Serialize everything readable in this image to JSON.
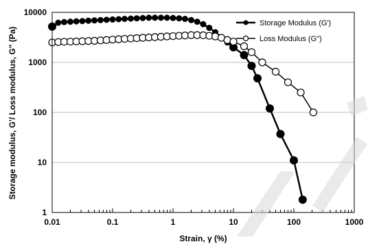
{
  "chart_data": {
    "type": "line",
    "xscale": "log",
    "yscale": "log",
    "xlim": [
      0.01,
      1000
    ],
    "ylim": [
      1,
      10000
    ],
    "xticks": [
      "0.01",
      "0.1",
      "1",
      "10",
      "100",
      "1000"
    ],
    "yticks": [
      "1",
      "10",
      "100",
      "1000",
      "10000"
    ],
    "xlabel": "Strain, γ (%)",
    "ylabel": "Storage modulus, G'/ Loss modulus, G\" (Pa)",
    "grid": "horizontal",
    "legend_position": "top-right",
    "series": [
      {
        "name": "Storage Modulus (G')",
        "color": "#000000",
        "marker": "filled-circle",
        "x": [
          0.01,
          0.0126,
          0.0158,
          0.02,
          0.0251,
          0.0316,
          0.0398,
          0.0501,
          0.0631,
          0.0794,
          0.1,
          0.126,
          0.158,
          0.2,
          0.251,
          0.316,
          0.398,
          0.501,
          0.631,
          0.794,
          1,
          1.26,
          1.58,
          2,
          2.51,
          3.16,
          3.98,
          5.01,
          6.31,
          7.94,
          10,
          15,
          20,
          25,
          40,
          60,
          100,
          140
        ],
        "y": [
          5200,
          6200,
          6400,
          6500,
          6600,
          6700,
          6800,
          6900,
          7000,
          7100,
          7200,
          7300,
          7400,
          7500,
          7600,
          7700,
          7800,
          7800,
          7800,
          7800,
          7700,
          7600,
          7400,
          7000,
          6500,
          5800,
          4900,
          4000,
          3200,
          2500,
          2000,
          1400,
          850,
          480,
          120,
          37,
          11,
          1.8
        ]
      },
      {
        "name": "Loss Modulus (G\")",
        "color": "#000000",
        "marker": "open-circle",
        "x": [
          0.01,
          0.0126,
          0.0158,
          0.02,
          0.0251,
          0.0316,
          0.0398,
          0.0501,
          0.0631,
          0.0794,
          0.1,
          0.126,
          0.158,
          0.2,
          0.251,
          0.316,
          0.398,
          0.501,
          0.631,
          0.794,
          1,
          1.26,
          1.58,
          2,
          2.51,
          3.16,
          3.98,
          5.01,
          6.31,
          7.94,
          10,
          15,
          20,
          30,
          50,
          80,
          130,
          210
        ],
        "y": [
          2500,
          2550,
          2580,
          2600,
          2620,
          2650,
          2680,
          2700,
          2750,
          2800,
          2850,
          2900,
          2950,
          3000,
          3050,
          3100,
          3150,
          3200,
          3250,
          3300,
          3350,
          3400,
          3450,
          3500,
          3500,
          3480,
          3400,
          3300,
          3100,
          2800,
          2600,
          2100,
          1600,
          1000,
          650,
          400,
          250,
          100
        ]
      }
    ]
  }
}
